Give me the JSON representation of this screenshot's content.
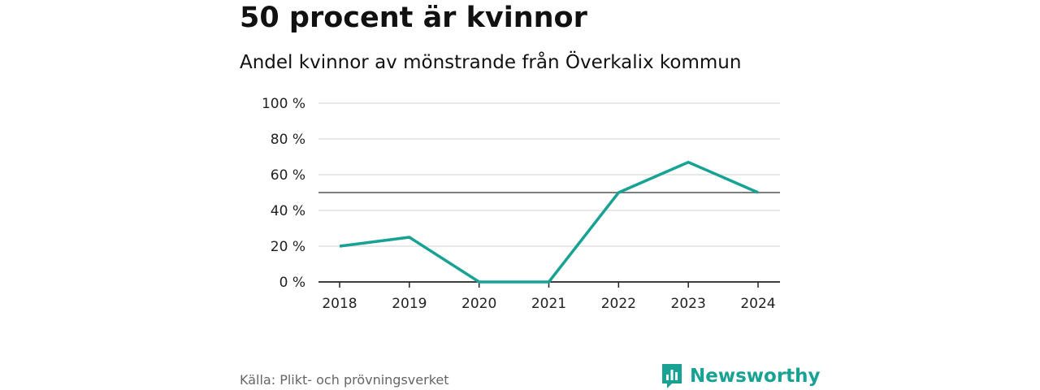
{
  "title": "50 procent är kvinnor",
  "subtitle": "Andel kvinnor av mönstrande från Överkalix kommun",
  "source": "Källa: Plikt- och prövningsverket",
  "brand": {
    "name": "Newsworthy",
    "icon": "newsworthy-logo-icon",
    "color": "#17a293"
  },
  "chart_data": {
    "type": "line",
    "x": [
      "2018",
      "2019",
      "2020",
      "2021",
      "2022",
      "2023",
      "2024"
    ],
    "series": [
      {
        "values": [
          20,
          25,
          0,
          0,
          50,
          67,
          50
        ],
        "color": "#17a293"
      }
    ],
    "ylim": [
      0,
      100
    ],
    "yticks": [
      0,
      20,
      40,
      60,
      80,
      100
    ],
    "ytick_labels": [
      "0 %",
      "20 %",
      "40 %",
      "60 %",
      "80 %",
      "100 %"
    ],
    "reference_line": 50,
    "grid": true,
    "xlabel": "",
    "ylabel": ""
  }
}
